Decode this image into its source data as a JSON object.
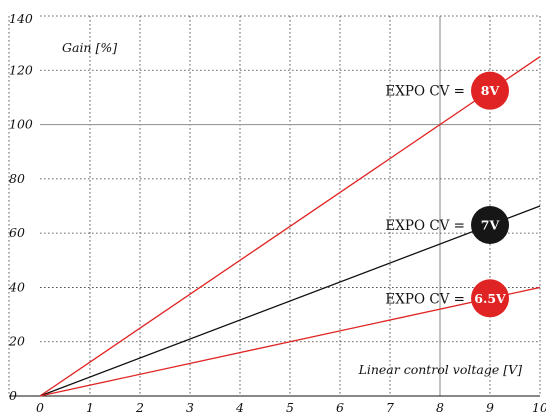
{
  "chart_data": {
    "type": "line",
    "title": "",
    "xlabel": "Linear control voltage [V]",
    "ylabel": "Gain [%]",
    "xlim": [
      0,
      10
    ],
    "ylim": [
      0,
      140
    ],
    "x_ticks": [
      "0",
      "1",
      "2",
      "3",
      "4",
      "5",
      "6",
      "7",
      "8",
      "9",
      "10"
    ],
    "y_ticks": [
      "0",
      "20",
      "40",
      "60",
      "80",
      "100",
      "120",
      "140"
    ],
    "grid": true,
    "series": [
      {
        "x": [
          0,
          10
        ],
        "y": [
          0,
          125
        ],
        "color": "#e02424",
        "label_prefix": "EXPO CV =",
        "badge": "8V",
        "badge_color": "#e02424"
      },
      {
        "x": [
          0,
          10
        ],
        "y": [
          0,
          70
        ],
        "color": "#111111",
        "label_prefix": "EXPO CV =",
        "badge": "7V",
        "badge_color": "#161616"
      },
      {
        "x": [
          0,
          10
        ],
        "y": [
          0,
          40
        ],
        "color": "#e02424",
        "label_prefix": "EXPO CV =",
        "badge": "6.5V",
        "badge_color": "#e02424"
      }
    ]
  }
}
